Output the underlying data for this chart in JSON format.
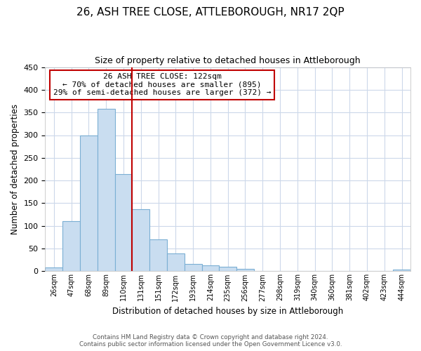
{
  "title": "26, ASH TREE CLOSE, ATTLEBOROUGH, NR17 2QP",
  "subtitle": "Size of property relative to detached houses in Attleborough",
  "xlabel": "Distribution of detached houses by size in Attleborough",
  "ylabel": "Number of detached properties",
  "bin_labels": [
    "26sqm",
    "47sqm",
    "68sqm",
    "89sqm",
    "110sqm",
    "131sqm",
    "151sqm",
    "172sqm",
    "193sqm",
    "214sqm",
    "235sqm",
    "256sqm",
    "277sqm",
    "298sqm",
    "319sqm",
    "340sqm",
    "360sqm",
    "381sqm",
    "402sqm",
    "423sqm",
    "444sqm"
  ],
  "bar_heights": [
    9,
    110,
    300,
    358,
    214,
    136,
    70,
    39,
    16,
    13,
    10,
    6,
    0,
    0,
    0,
    0,
    0,
    0,
    0,
    0,
    3
  ],
  "bar_color": "#c9ddf0",
  "bar_edge_color": "#7bafd4",
  "vline_color": "#c00000",
  "vline_x_index": 4.5,
  "ylim": [
    0,
    450
  ],
  "yticks": [
    0,
    50,
    100,
    150,
    200,
    250,
    300,
    350,
    400,
    450
  ],
  "annotation_line1": "26 ASH TREE CLOSE: 122sqm",
  "annotation_line2": "← 70% of detached houses are smaller (895)",
  "annotation_line3": "29% of semi-detached houses are larger (372) →",
  "annotation_box_color": "#ffffff",
  "annotation_box_edge": "#c00000",
  "footer_line1": "Contains HM Land Registry data © Crown copyright and database right 2024.",
  "footer_line2": "Contains public sector information licensed under the Open Government Licence v3.0.",
  "background_color": "#ffffff",
  "grid_color": "#ccd8ea"
}
